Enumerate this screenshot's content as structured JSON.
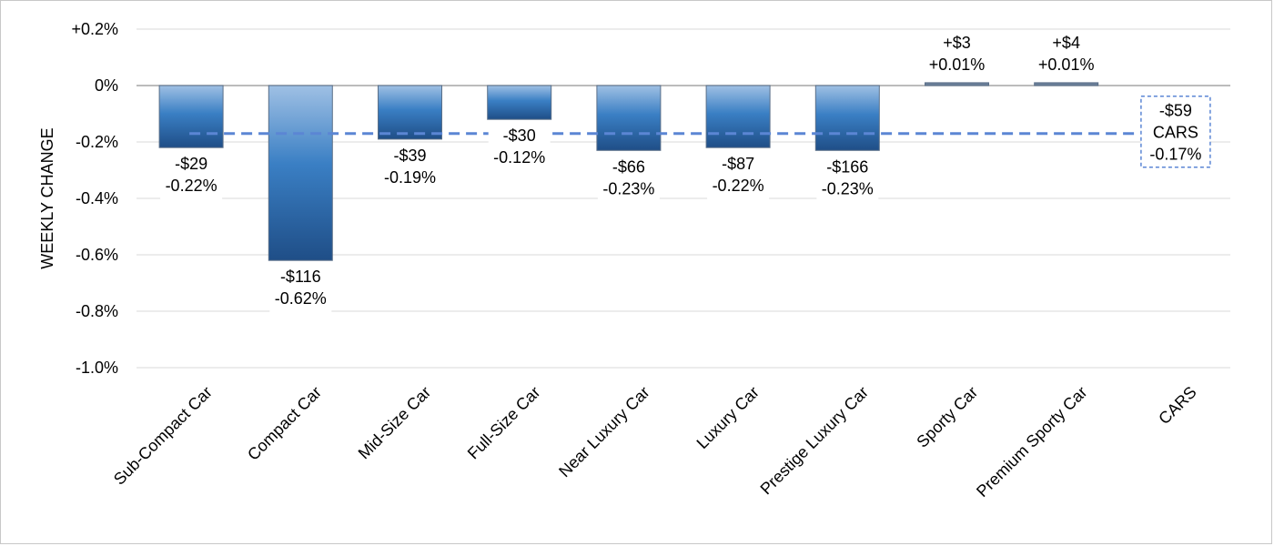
{
  "chart_data": {
    "type": "bar",
    "ylabel": "WEEKLY CHANGE",
    "ylim": [
      -1.0,
      0.2
    ],
    "yticks": [
      {
        "value": 0.2,
        "label": "+0.2%"
      },
      {
        "value": 0.0,
        "label": "0%"
      },
      {
        "value": -0.2,
        "label": "-0.2%"
      },
      {
        "value": -0.4,
        "label": "-0.4%"
      },
      {
        "value": -0.6,
        "label": "-0.6%"
      },
      {
        "value": -0.8,
        "label": "-0.8%"
      },
      {
        "value": -1.0,
        "label": "-1.0%"
      }
    ],
    "grid": true,
    "categories": [
      "Sub-Compact Car",
      "Compact Car",
      "Mid-Size Car",
      "Full-Size Car",
      "Near Luxury Car",
      "Luxury Car",
      "Prestige Luxury Car",
      "Sporty Car",
      "Premium Sporty Car",
      "CARS"
    ],
    "values": [
      -0.22,
      -0.62,
      -0.19,
      -0.12,
      -0.23,
      -0.22,
      -0.23,
      0.01,
      0.01,
      null
    ],
    "dollar_labels": [
      "-$29",
      "-$116",
      "-$39",
      "-$30",
      "-$66",
      "-$87",
      "-$166",
      "+$3",
      "+$4"
    ],
    "percent_labels": [
      "-0.22%",
      "-0.62%",
      "-0.19%",
      "-0.12%",
      "-0.23%",
      "-0.22%",
      "-0.23%",
      "+0.01%",
      "+0.01%"
    ],
    "reference": {
      "value": -0.17,
      "lines": [
        "-$59",
        "CARS",
        "-0.17%"
      ]
    },
    "colors": {
      "bar_light": "#9fc0e4",
      "bar_mid": "#3a7fc4",
      "bar_dark": "#1f4e87",
      "reference_line": "#5b86d4",
      "grid": "#d9d9d9",
      "zero_axis": "#a6a6a6"
    }
  }
}
